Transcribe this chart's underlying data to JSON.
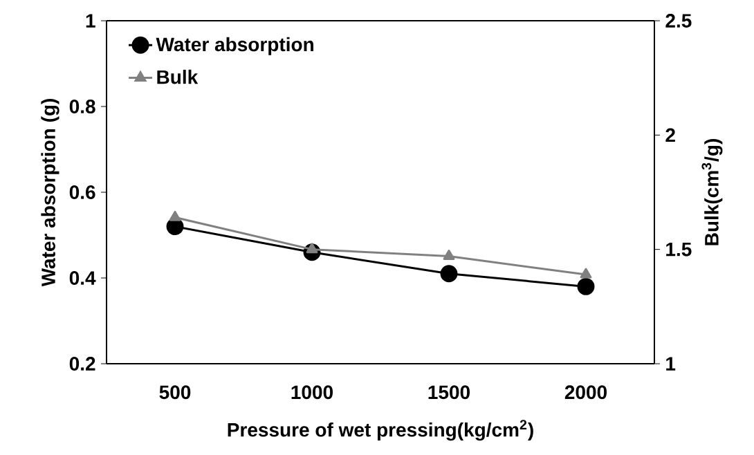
{
  "chart_data": {
    "type": "line",
    "xlabel": "Pressure of wet pressing(kg/cm$^{2}$)",
    "ylabel": "Water absorption (g)",
    "y2label": "Bulk(cm$^{3}$/g)",
    "categories": [
      "500",
      "1000",
      "1500",
      "2000"
    ],
    "series": [
      {
        "name": "Water absorption",
        "color": "#000000",
        "marker": "circle",
        "values": [
          0.52,
          0.46,
          0.41,
          0.38
        ]
      },
      {
        "name": "Bulk",
        "color": "#808080",
        "marker": "triangle",
        "axis": "y2",
        "values": [
          1.64,
          1.5,
          1.47,
          1.39
        ]
      }
    ],
    "ylim": [
      0.2,
      1
    ],
    "yticks": [
      0.2,
      0.4,
      0.6,
      0.8,
      1
    ],
    "y2lim": [
      1,
      2.5
    ],
    "y2ticks": [
      1,
      1.5,
      2,
      2.5
    ],
    "legend": "top left",
    "grid": false,
    "line_style": "solid"
  }
}
